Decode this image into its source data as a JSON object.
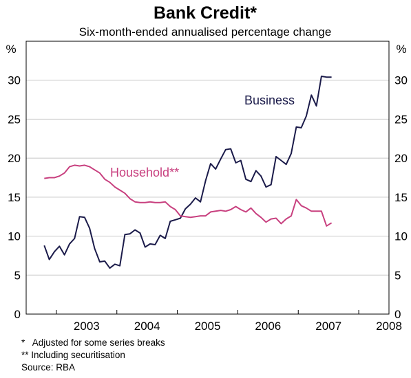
{
  "chart_data": {
    "type": "line",
    "title": "Bank Credit*",
    "subtitle": "Six-month-ended annualised percentage change",
    "ylabel_left": "%",
    "ylabel_right": "%",
    "ylim": [
      0,
      35
    ],
    "yticks": [
      0,
      5,
      10,
      15,
      20,
      25,
      30
    ],
    "xlim": [
      2002.5,
      2008.5
    ],
    "x_categories": [
      "2003",
      "2004",
      "2005",
      "2006",
      "2007",
      "2008"
    ],
    "grid": "horizontal",
    "series": [
      {
        "name": "Business",
        "color": "#1b1b4a",
        "points": [
          [
            2002.8,
            8.8
          ],
          [
            2002.883,
            7.0
          ],
          [
            2002.967,
            8.0
          ],
          [
            2003.05,
            8.7
          ],
          [
            2003.133,
            7.6
          ],
          [
            2003.217,
            9.0
          ],
          [
            2003.3,
            9.7
          ],
          [
            2003.383,
            12.5
          ],
          [
            2003.467,
            12.4
          ],
          [
            2003.55,
            11.0
          ],
          [
            2003.633,
            8.4
          ],
          [
            2003.717,
            6.7
          ],
          [
            2003.8,
            6.8
          ],
          [
            2003.883,
            5.9
          ],
          [
            2003.967,
            6.4
          ],
          [
            2004.05,
            6.2
          ],
          [
            2004.133,
            10.2
          ],
          [
            2004.217,
            10.3
          ],
          [
            2004.3,
            10.8
          ],
          [
            2004.383,
            10.4
          ],
          [
            2004.467,
            8.6
          ],
          [
            2004.55,
            9.0
          ],
          [
            2004.633,
            8.9
          ],
          [
            2004.717,
            10.1
          ],
          [
            2004.8,
            9.7
          ],
          [
            2004.883,
            11.9
          ],
          [
            2004.967,
            12.1
          ],
          [
            2005.05,
            12.3
          ],
          [
            2005.133,
            13.5
          ],
          [
            2005.217,
            14.1
          ],
          [
            2005.3,
            14.9
          ],
          [
            2005.383,
            14.4
          ],
          [
            2005.467,
            17.1
          ],
          [
            2005.55,
            19.3
          ],
          [
            2005.633,
            18.6
          ],
          [
            2005.717,
            19.9
          ],
          [
            2005.8,
            21.1
          ],
          [
            2005.883,
            21.2
          ],
          [
            2005.967,
            19.4
          ],
          [
            2006.05,
            19.7
          ],
          [
            2006.133,
            17.3
          ],
          [
            2006.217,
            17.0
          ],
          [
            2006.3,
            18.4
          ],
          [
            2006.383,
            17.7
          ],
          [
            2006.467,
            16.3
          ],
          [
            2006.55,
            16.6
          ],
          [
            2006.633,
            20.2
          ],
          [
            2006.717,
            19.7
          ],
          [
            2006.8,
            19.2
          ],
          [
            2006.883,
            20.6
          ],
          [
            2006.967,
            24.0
          ],
          [
            2007.05,
            23.9
          ],
          [
            2007.133,
            25.4
          ],
          [
            2007.217,
            28.1
          ],
          [
            2007.3,
            26.7
          ],
          [
            2007.383,
            30.5
          ],
          [
            2007.467,
            30.4
          ],
          [
            2007.55,
            30.4
          ]
        ]
      },
      {
        "name": "Household**",
        "color": "#c8407f",
        "points": [
          [
            2002.8,
            17.4
          ],
          [
            2002.883,
            17.5
          ],
          [
            2002.967,
            17.5
          ],
          [
            2003.05,
            17.7
          ],
          [
            2003.133,
            18.1
          ],
          [
            2003.217,
            18.9
          ],
          [
            2003.3,
            19.1
          ],
          [
            2003.383,
            19.0
          ],
          [
            2003.467,
            19.1
          ],
          [
            2003.55,
            18.9
          ],
          [
            2003.633,
            18.5
          ],
          [
            2003.717,
            18.1
          ],
          [
            2003.8,
            17.3
          ],
          [
            2003.883,
            16.9
          ],
          [
            2003.967,
            16.3
          ],
          [
            2004.05,
            15.9
          ],
          [
            2004.133,
            15.5
          ],
          [
            2004.217,
            14.8
          ],
          [
            2004.3,
            14.4
          ],
          [
            2004.383,
            14.3
          ],
          [
            2004.467,
            14.3
          ],
          [
            2004.55,
            14.4
          ],
          [
            2004.633,
            14.3
          ],
          [
            2004.717,
            14.3
          ],
          [
            2004.8,
            14.4
          ],
          [
            2004.883,
            13.8
          ],
          [
            2004.967,
            13.4
          ],
          [
            2005.05,
            12.6
          ],
          [
            2005.133,
            12.5
          ],
          [
            2005.217,
            12.4
          ],
          [
            2005.3,
            12.5
          ],
          [
            2005.383,
            12.6
          ],
          [
            2005.467,
            12.6
          ],
          [
            2005.55,
            13.1
          ],
          [
            2005.633,
            13.2
          ],
          [
            2005.717,
            13.3
          ],
          [
            2005.8,
            13.2
          ],
          [
            2005.883,
            13.4
          ],
          [
            2005.967,
            13.8
          ],
          [
            2006.05,
            13.4
          ],
          [
            2006.133,
            13.1
          ],
          [
            2006.217,
            13.6
          ],
          [
            2006.3,
            12.9
          ],
          [
            2006.383,
            12.4
          ],
          [
            2006.467,
            11.8
          ],
          [
            2006.55,
            12.2
          ],
          [
            2006.633,
            12.3
          ],
          [
            2006.717,
            11.6
          ],
          [
            2006.8,
            12.2
          ],
          [
            2006.883,
            12.6
          ],
          [
            2006.967,
            14.7
          ],
          [
            2007.05,
            13.9
          ],
          [
            2007.133,
            13.6
          ],
          [
            2007.217,
            13.2
          ],
          [
            2007.3,
            13.2
          ],
          [
            2007.383,
            13.2
          ],
          [
            2007.467,
            11.3
          ],
          [
            2007.55,
            11.7
          ]
        ]
      }
    ]
  },
  "notes": [
    "*   Adjusted for some series breaks",
    "** Including securitisation",
    "Source: RBA"
  ]
}
